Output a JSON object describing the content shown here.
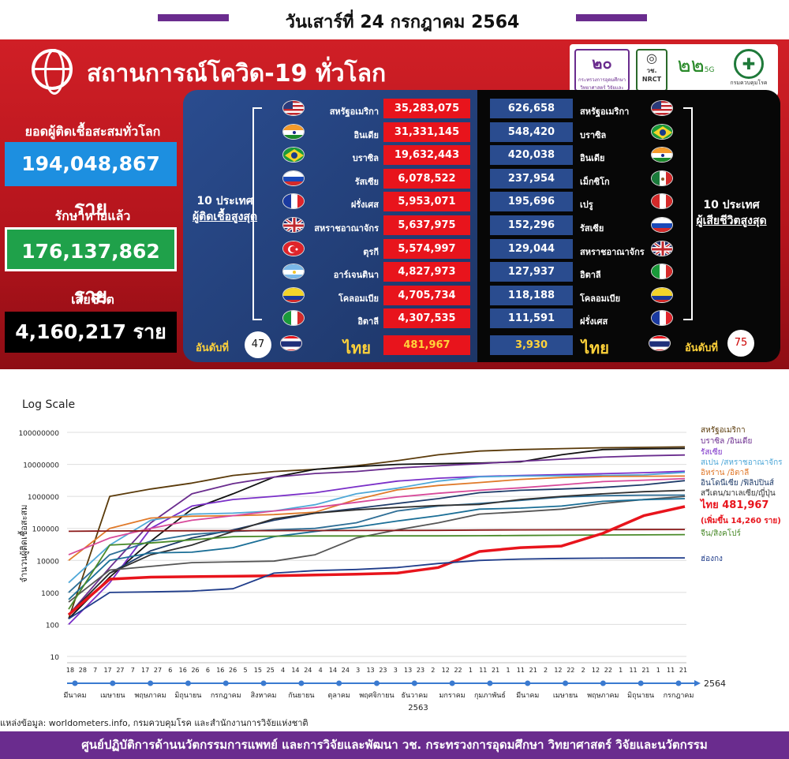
{
  "header": {
    "date": "วันเสาร์ที่ 24 กรกฎาคม 2564",
    "bar_color": "#6a2c8e"
  },
  "panel": {
    "title": "สถานการณ์โควิด-19 ทั่วโลก",
    "logos": [
      "กระทรวงการอุดมศึกษา วิทยาศาสตร์ วิจัยและนวัตกรรม",
      "วช. NRCT",
      "5G",
      "กรมควบคุมโรค"
    ]
  },
  "stats": {
    "cases_label": "ยอดผู้ติดเชื้อสะสมทั่วโลก",
    "cases_value": "194,048,867 ราย",
    "recovered_label": "รักษาหายแล้ว",
    "recovered_value": "176,137,862 ราย",
    "deaths_label": "เสียชีวิต",
    "deaths_value": "4,160,217 ราย",
    "cases_color": "#1d8fe0",
    "recovered_color": "#1fa14a",
    "deaths_color": "#000000"
  },
  "top_cases": {
    "label_line1": "10 ประเทศ",
    "label_line2": "ผู้ติดเชื้อสูงสุด",
    "rank_label": "อันดับที่",
    "rank": "47",
    "thai_name": "ไทย",
    "thai_value": "481,967",
    "rows": [
      {
        "name": "สหรัฐอเมริกา",
        "value": "35,283,075",
        "flag": "us"
      },
      {
        "name": "อินเดีย",
        "value": "31,331,145",
        "flag": "in"
      },
      {
        "name": "บราซิล",
        "value": "19,632,443",
        "flag": "br"
      },
      {
        "name": "รัสเซีย",
        "value": "6,078,522",
        "flag": "ru"
      },
      {
        "name": "ฝรั่งเศส",
        "value": "5,953,071",
        "flag": "fr"
      },
      {
        "name": "สหราชอาณาจักร",
        "value": "5,637,975",
        "flag": "uk"
      },
      {
        "name": "ตุรกี",
        "value": "5,574,997",
        "flag": "tr"
      },
      {
        "name": "อาร์เจนตินา",
        "value": "4,827,973",
        "flag": "ar"
      },
      {
        "name": "โคลอมเบีย",
        "value": "4,705,734",
        "flag": "co"
      },
      {
        "name": "อิตาลี",
        "value": "4,307,535",
        "flag": "it"
      }
    ]
  },
  "top_deaths": {
    "label_line1": "10 ประเทศ",
    "label_line2": "ผู้เสียชีวิตสูงสุด",
    "rank_label": "อันดับที่",
    "rank": "75",
    "thai_name": "ไทย",
    "thai_value": "3,930",
    "rows": [
      {
        "name": "สหรัฐอเมริกา",
        "value": "626,658",
        "flag": "us"
      },
      {
        "name": "บราซิล",
        "value": "548,420",
        "flag": "br"
      },
      {
        "name": "อินเดีย",
        "value": "420,038",
        "flag": "in"
      },
      {
        "name": "เม็กซิโก",
        "value": "237,954",
        "flag": "mx"
      },
      {
        "name": "เปรู",
        "value": "195,696",
        "flag": "pe"
      },
      {
        "name": "รัสเซีย",
        "value": "152,296",
        "flag": "ru"
      },
      {
        "name": "สหราชอาณาจักร",
        "value": "129,044",
        "flag": "uk"
      },
      {
        "name": "อิตาลี",
        "value": "127,937",
        "flag": "it"
      },
      {
        "name": "โคลอมเบีย",
        "value": "118,188",
        "flag": "co"
      },
      {
        "name": "ฝรั่งเศส",
        "value": "111,591",
        "flag": "fr"
      }
    ]
  },
  "chart_data": {
    "type": "line",
    "title": "Log Scale",
    "ylabel": "จำนวนผู้ติดเชื้อสะสม",
    "yscale": "log",
    "ylim": [
      10,
      100000000
    ],
    "y_ticks": [
      "100000000",
      "10000000",
      "1000000",
      "100000",
      "10000",
      "1000",
      "100",
      "10"
    ],
    "x_ticks": [
      "18",
      "28",
      "7",
      "17",
      "27",
      "7",
      "17",
      "27",
      "6",
      "16",
      "26",
      "6",
      "16",
      "26",
      "5",
      "15",
      "25",
      "4",
      "14",
      "24",
      "4",
      "14",
      "24",
      "3",
      "13",
      "23",
      "3",
      "13",
      "23",
      "2",
      "12",
      "22",
      "1",
      "11",
      "21",
      "1",
      "11",
      "21",
      "2",
      "12",
      "22",
      "2",
      "12",
      "22",
      "1",
      "11",
      "21",
      "1",
      "11",
      "21"
    ],
    "x_months": [
      "มีนาคม",
      "เมษายน",
      "พฤษภาคม",
      "มิถุนายน",
      "กรกฎาคม",
      "สิงหาคม",
      "กันยายน",
      "ตุลาคม",
      "พฤศจิกายน",
      "ธันวาคม",
      "มกราคม",
      "กุมภาพันธ์",
      "มีนาคม",
      "เมษายน",
      "พฤษภาคม",
      "มิถุนายน",
      "กรกฎาคม"
    ],
    "year_labels": [
      "2563",
      "2564"
    ],
    "legend": [
      {
        "text": "สหรัฐอเมริกา",
        "color": "#5a3a0a"
      },
      {
        "text": "บราซิล /อินเดีย",
        "color": "#6a2c8e"
      },
      {
        "text": "รัสเซีย",
        "color": "#7a2fc8"
      },
      {
        "text": "สเปน /สหราชอาณาจักร",
        "color": "#4fa8d8"
      },
      {
        "text": "อิหร่าน /อิตาลี",
        "color": "#e0782a"
      },
      {
        "text": "อินโดนีเซีย /ฟิลิปปินส์",
        "color": "#1f3c6a"
      },
      {
        "text": "สวีเดน/มาเลเซีย/ญี่ปุ่น",
        "color": "#333333"
      },
      {
        "text": "ไทย 481,967",
        "color": "#e8141c"
      },
      {
        "text": "(เพิ่มขึ้น 14,260 ราย)",
        "color": "#e8141c"
      },
      {
        "text": "จีน/สิงคโปร์",
        "color": "#4a8a2a"
      },
      {
        "text": "ฮ่องกง",
        "color": "#1f3c8a"
      }
    ],
    "series": [
      {
        "name": "สหรัฐอเมริกา",
        "color": "#5a3a0a",
        "values": [
          150,
          1000000,
          1700000,
          2600000,
          4500000,
          6000000,
          7000000,
          9000000,
          13000000,
          20000000,
          26000000,
          29000000,
          31000000,
          33000000,
          34000000,
          35283075
        ]
      },
      {
        "name": "อินเดีย",
        "color": "#111111",
        "values": [
          150,
          3000,
          40000,
          400000,
          1200000,
          4000000,
          7000000,
          8500000,
          10000000,
          10500000,
          11000000,
          12000000,
          20000000,
          29000000,
          30500000,
          31331145
        ]
      },
      {
        "name": "บราซิล",
        "color": "#6a2c8e",
        "values": [
          200,
          6000,
          150000,
          1200000,
          2500000,
          4000000,
          5200000,
          6000000,
          7700000,
          9000000,
          10500000,
          12500000,
          14500000,
          16800000,
          18500000,
          19632443
        ]
      },
      {
        "name": "รัสเซีย",
        "color": "#7a2fc8",
        "values": [
          100,
          2000,
          100000,
          500000,
          800000,
          1000000,
          1300000,
          2000000,
          3000000,
          3700000,
          4200000,
          4500000,
          4800000,
          5100000,
          5500000,
          6078522
        ]
      },
      {
        "name": "สหราชอาณาจักร",
        "color": "#4fa8d8",
        "values": [
          2000,
          30000,
          180000,
          280000,
          300000,
          350000,
          550000,
          1200000,
          1800000,
          3000000,
          4100000,
          4300000,
          4400000,
          4500000,
          4700000,
          5637975
        ]
      },
      {
        "name": "อิตาลี",
        "color": "#e07a2a",
        "values": [
          10000,
          100000,
          210000,
          240000,
          250000,
          270000,
          320000,
          800000,
          1600000,
          2200000,
          2700000,
          3400000,
          3900000,
          4200000,
          4250000,
          4307535
        ]
      },
      {
        "name": "อิหร่าน",
        "color": "#d84a9a",
        "values": [
          15000,
          50000,
          100000,
          180000,
          250000,
          350000,
          450000,
          650000,
          950000,
          1250000,
          1550000,
          1850000,
          2300000,
          2900000,
          3200000,
          3600000
        ]
      },
      {
        "name": "อินโดนีเซีย",
        "color": "#1f3c6a",
        "values": [
          200,
          4000,
          20000,
          50000,
          90000,
          180000,
          300000,
          420000,
          600000,
          850000,
          1300000,
          1550000,
          1700000,
          1900000,
          2300000,
          3100000
        ]
      },
      {
        "name": "สวีเดน",
        "color": "#2e6e96",
        "values": [
          1000,
          15000,
          40000,
          65000,
          80000,
          90000,
          100000,
          150000,
          350000,
          500000,
          600000,
          750000,
          950000,
          1050000,
          1090000,
          1100000
        ]
      },
      {
        "name": "ฟิลิปปินส์",
        "color": "#303030",
        "values": [
          200,
          4000,
          15000,
          30000,
          80000,
          200000,
          300000,
          380000,
          450000,
          520000,
          560000,
          800000,
          1000000,
          1200000,
          1400000,
          1540000
        ]
      },
      {
        "name": "มาเลเซีย",
        "color": "#555555",
        "values": [
          500,
          5000,
          6500,
          8500,
          9000,
          9500,
          15000,
          50000,
          90000,
          150000,
          280000,
          330000,
          400000,
          600000,
          800000,
          1000000
        ]
      },
      {
        "name": "ญี่ปุ่น",
        "color": "#1a6e96",
        "values": [
          600,
          10000,
          17000,
          18000,
          25000,
          55000,
          80000,
          110000,
          170000,
          250000,
          400000,
          430000,
          500000,
          700000,
          790000,
          850000
        ]
      },
      {
        "name": "จีน",
        "color": "#8b1a1a",
        "values": [
          81000,
          83000,
          84000,
          84500,
          84800,
          85000,
          85400,
          85800,
          86400,
          87000,
          89000,
          90000,
          90300,
          90800,
          91700,
          92500
        ]
      },
      {
        "name": "สิงคโปร์",
        "color": "#4a8a2a",
        "values": [
          300,
          30000,
          35000,
          44000,
          55000,
          57000,
          58000,
          58100,
          58300,
          58500,
          59000,
          60000,
          61000,
          62000,
          63000,
          64000
        ]
      },
      {
        "name": "ไทย",
        "color": "#e8141c",
        "values": [
          200,
          2600,
          3000,
          3100,
          3200,
          3300,
          3500,
          3700,
          4000,
          6000,
          19000,
          25000,
          28000,
          70000,
          250000,
          481967
        ]
      },
      {
        "name": "ฮ่องกง",
        "color": "#1f3c8a",
        "values": [
          150,
          1000,
          1040,
          1100,
          1300,
          4000,
          4800,
          5200,
          6000,
          8000,
          10000,
          11000,
          11500,
          11800,
          11900,
          12000
        ]
      }
    ]
  },
  "footer": {
    "source": "แหล่งข้อมูล: worldometers.info, กรมควบคุมโรค และสำนักงานการวิจัยแห่งชาติ",
    "bar_text": "ศูนย์ปฏิบัติการด้านนวัตกรรมการแพทย์ และการวิจัยและพัฒนา วช.  กระทรวงการอุดมศึกษา วิทยาศาสตร์ วิจัยและนวัตกรรม"
  }
}
